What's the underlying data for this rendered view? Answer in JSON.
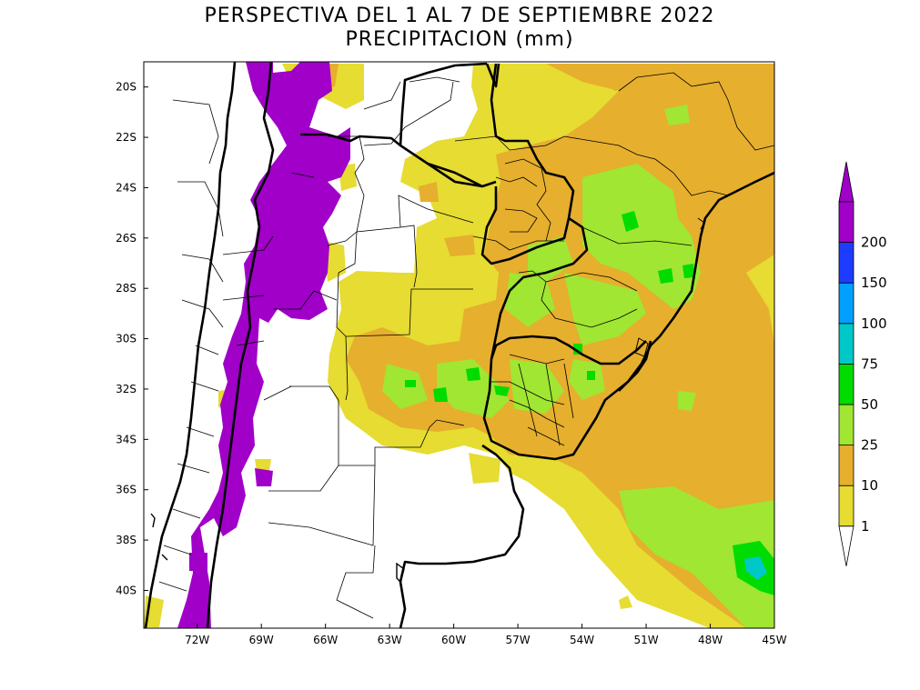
{
  "title": {
    "line1": "PERSPECTIVA DEL 1 AL 7 DE SEPTIEMBRE 2022",
    "line2": "PRECIPITACION (mm)"
  },
  "map": {
    "lon_range": [
      -74.5,
      -45
    ],
    "lat_range": [
      -41.5,
      -19
    ],
    "lat_ticks": [
      {
        "value": -20,
        "label": "20S"
      },
      {
        "value": -22,
        "label": "22S"
      },
      {
        "value": -24,
        "label": "24S"
      },
      {
        "value": -26,
        "label": "26S"
      },
      {
        "value": -28,
        "label": "28S"
      },
      {
        "value": -30,
        "label": "30S"
      },
      {
        "value": -32,
        "label": "32S"
      },
      {
        "value": -34,
        "label": "34S"
      },
      {
        "value": -36,
        "label": "36S"
      },
      {
        "value": -38,
        "label": "38S"
      },
      {
        "value": -40,
        "label": "40S"
      }
    ],
    "lon_ticks": [
      {
        "value": -72,
        "label": "72W"
      },
      {
        "value": -69,
        "label": "69W"
      },
      {
        "value": -66,
        "label": "66W"
      },
      {
        "value": -63,
        "label": "63W"
      },
      {
        "value": -60,
        "label": "60W"
      },
      {
        "value": -57,
        "label": "57W"
      },
      {
        "value": -54,
        "label": "54W"
      },
      {
        "value": -51,
        "label": "51W"
      },
      {
        "value": -48,
        "label": "48W"
      },
      {
        "value": -45,
        "label": "45W"
      }
    ]
  },
  "legend": {
    "levels": [
      {
        "label": "1",
        "color": "#e6dc32"
      },
      {
        "label": "10",
        "color": "#e6af2d"
      },
      {
        "label": "25",
        "color": "#a0e632"
      },
      {
        "label": "50",
        "color": "#00dc00"
      },
      {
        "label": "75",
        "color": "#00c8c8"
      },
      {
        "label": "100",
        "color": "#00a0ff"
      },
      {
        "label": "150",
        "color": "#1e3cff"
      },
      {
        "label": "200",
        "color": "#a000c8"
      }
    ],
    "below_color": "#ffffff",
    "above_color": "#a000c8"
  }
}
